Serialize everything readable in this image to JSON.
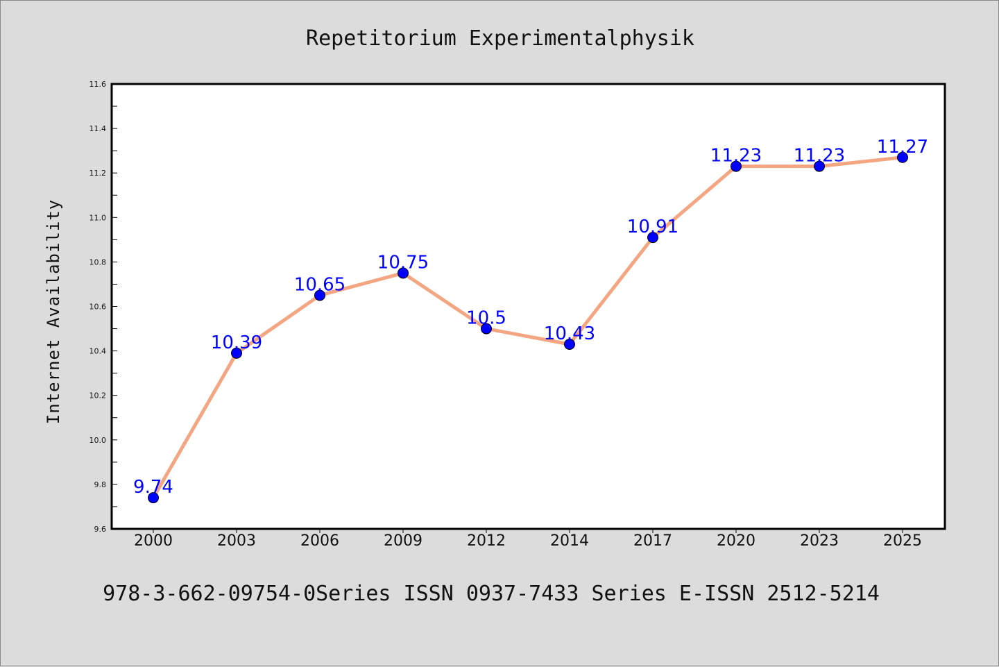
{
  "chart_data": {
    "type": "line",
    "title": "Repetitorium Experimentalphysik",
    "xlabel": "",
    "ylabel": "Internet Availability",
    "categories": [
      "2000",
      "2003",
      "2006",
      "2009",
      "2012",
      "2014",
      "2017",
      "2020",
      "2023",
      "2025"
    ],
    "series": [
      {
        "values": [
          9.74,
          10.39,
          10.65,
          10.75,
          10.5,
          10.43,
          10.91,
          11.23,
          11.23,
          11.27
        ]
      }
    ],
    "data_labels": [
      "9.74",
      "10.39",
      "10.65",
      "10.75",
      "10.5",
      "10.43",
      "10.91",
      "11.23",
      "11.23",
      "11.27"
    ],
    "ylim": [
      9.6,
      11.6
    ],
    "yticks": [
      "9.6",
      "9.8",
      "10.0",
      "10.2",
      "10.4",
      "10.6",
      "10.8",
      "11.0",
      "11.2",
      "11.4",
      "11.6"
    ],
    "grid": false,
    "legend": "none",
    "colors": {
      "line": "#f4a582",
      "marker": "#0000ff",
      "data_label": "#0000ff",
      "background": "#dcdcdc",
      "plot_area": "#ffffff"
    }
  },
  "footer": "978-3-662-09754-0Series ISSN 0937-7433 Series E-ISSN 2512-5214"
}
